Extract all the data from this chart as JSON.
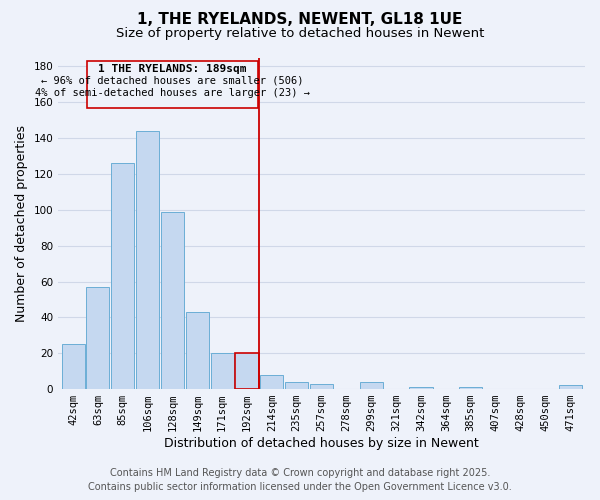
{
  "title": "1, THE RYELANDS, NEWENT, GL18 1UE",
  "subtitle": "Size of property relative to detached houses in Newent",
  "xlabel": "Distribution of detached houses by size in Newent",
  "ylabel": "Number of detached properties",
  "bar_labels": [
    "42sqm",
    "63sqm",
    "85sqm",
    "106sqm",
    "128sqm",
    "149sqm",
    "171sqm",
    "192sqm",
    "214sqm",
    "235sqm",
    "257sqm",
    "278sqm",
    "299sqm",
    "321sqm",
    "342sqm",
    "364sqm",
    "385sqm",
    "407sqm",
    "428sqm",
    "450sqm",
    "471sqm"
  ],
  "bar_values": [
    25,
    57,
    126,
    144,
    99,
    43,
    20,
    20,
    8,
    4,
    3,
    0,
    4,
    0,
    1,
    0,
    1,
    0,
    0,
    0,
    2
  ],
  "bar_color": "#c5d8f0",
  "bar_edge_color": "#6baed6",
  "highlight_bar_index": 7,
  "highlight_bar_edge_color": "#cc0000",
  "vline_color": "#cc0000",
  "annotation_title": "1 THE RYELANDS: 189sqm",
  "annotation_line1": "← 96% of detached houses are smaller (506)",
  "annotation_line2": "4% of semi-detached houses are larger (23) →",
  "ylim": [
    0,
    185
  ],
  "yticks": [
    0,
    20,
    40,
    60,
    80,
    100,
    120,
    140,
    160,
    180
  ],
  "footer_line1": "Contains HM Land Registry data © Crown copyright and database right 2025.",
  "footer_line2": "Contains public sector information licensed under the Open Government Licence v3.0.",
  "background_color": "#eef2fa",
  "grid_color": "#d0d8e8",
  "title_fontsize": 11,
  "subtitle_fontsize": 9.5,
  "axis_label_fontsize": 9,
  "tick_fontsize": 7.5,
  "footer_fontsize": 7
}
